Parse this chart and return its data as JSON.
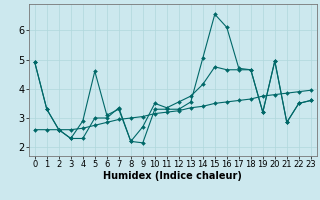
{
  "xlabel": "Humidex (Indice chaleur)",
  "background_color": "#cce8ee",
  "line_color": "#006868",
  "grid_color": "#b0d8dc",
  "xlim": [
    -0.5,
    23.5
  ],
  "ylim": [
    1.7,
    6.9
  ],
  "xticks": [
    0,
    1,
    2,
    3,
    4,
    5,
    6,
    7,
    8,
    9,
    10,
    11,
    12,
    13,
    14,
    15,
    16,
    17,
    18,
    19,
    20,
    21,
    22,
    23
  ],
  "yticks": [
    2,
    3,
    4,
    5,
    6
  ],
  "series": [
    [
      4.9,
      3.3,
      2.6,
      2.3,
      2.9,
      4.6,
      3.1,
      3.3,
      2.2,
      2.15,
      3.3,
      3.3,
      3.3,
      3.55,
      5.05,
      6.55,
      6.1,
      4.7,
      4.65,
      3.2,
      4.95,
      2.85,
      3.5,
      3.6
    ],
    [
      4.9,
      3.3,
      2.6,
      2.3,
      2.3,
      3.0,
      3.0,
      3.35,
      2.2,
      2.7,
      3.5,
      3.35,
      3.55,
      3.75,
      4.15,
      4.75,
      4.65,
      4.65,
      4.65,
      3.2,
      4.95,
      2.85,
      3.5,
      3.6
    ],
    [
      2.6,
      2.6,
      2.6,
      2.6,
      2.65,
      2.75,
      2.85,
      2.95,
      3.0,
      3.05,
      3.15,
      3.2,
      3.25,
      3.35,
      3.4,
      3.5,
      3.55,
      3.6,
      3.65,
      3.75,
      3.8,
      3.85,
      3.9,
      3.95
    ]
  ],
  "xlabel_fontsize": 7,
  "tick_fontsize": 6,
  "ytick_fontsize": 7,
  "linewidth": 0.8,
  "markersize": 2.0
}
